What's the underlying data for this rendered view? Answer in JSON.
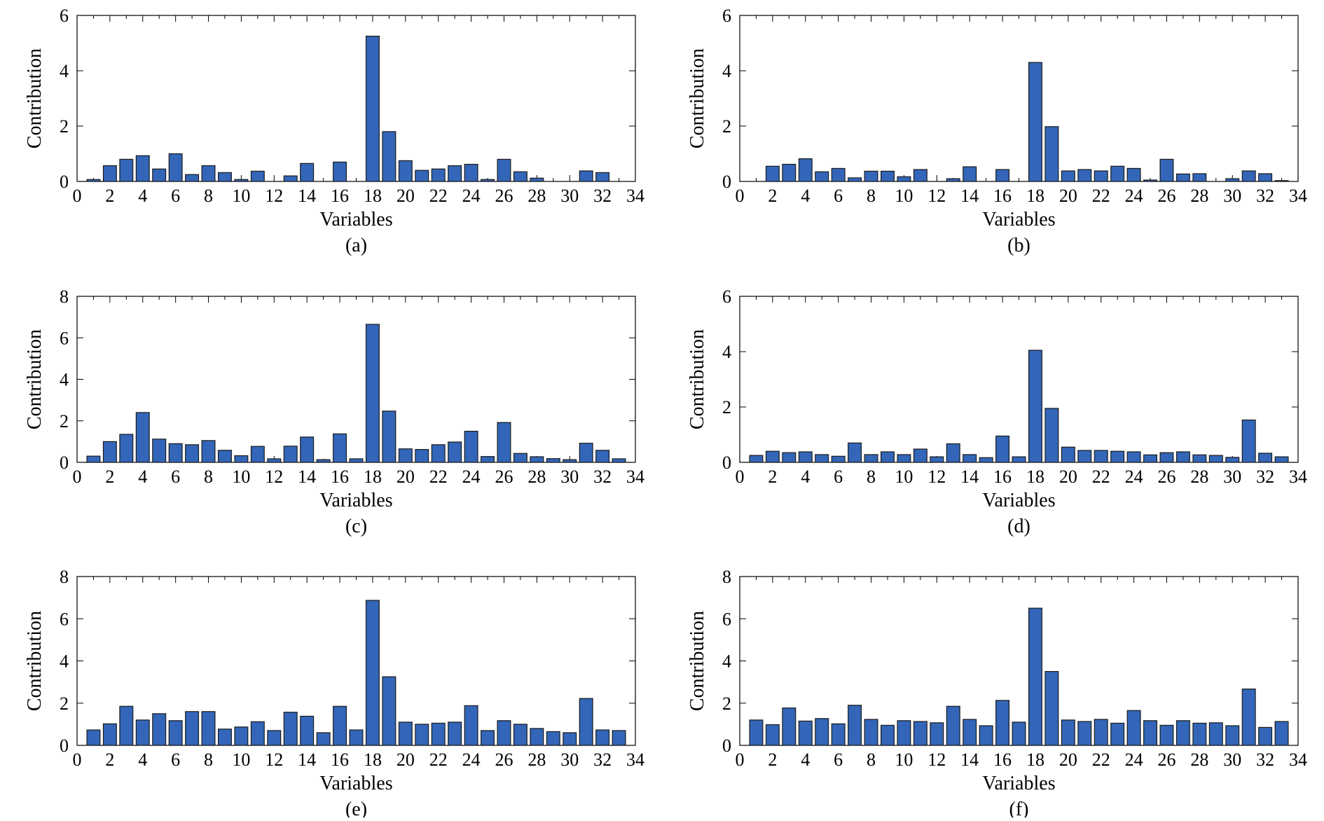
{
  "colors": {
    "bar_fill": "#3366b8",
    "bar_stroke": "#1a1a1a",
    "axis": "#000000",
    "background": "#ffffff"
  },
  "chart_data": [
    {
      "type": "bar",
      "panel_label": "(a)",
      "xlabel": "Variables",
      "ylabel": "Contribution",
      "xlim": [
        0,
        34
      ],
      "ylim": [
        0,
        6
      ],
      "xticks": [
        0,
        2,
        4,
        6,
        8,
        10,
        12,
        14,
        16,
        18,
        20,
        22,
        24,
        26,
        28,
        30,
        32,
        34
      ],
      "yticks": [
        0,
        2,
        4,
        6
      ],
      "categories": [
        1,
        2,
        3,
        4,
        5,
        6,
        7,
        8,
        9,
        10,
        11,
        12,
        13,
        14,
        15,
        16,
        17,
        18,
        19,
        20,
        21,
        22,
        23,
        24,
        25,
        26,
        27,
        28,
        29,
        30,
        31,
        32,
        33
      ],
      "values": [
        0.07,
        0.57,
        0.8,
        0.93,
        0.45,
        1.0,
        0.25,
        0.57,
        0.32,
        0.07,
        0.37,
        0,
        0.2,
        0.65,
        0,
        0.7,
        0,
        5.25,
        1.8,
        0.75,
        0.4,
        0.45,
        0.57,
        0.62,
        0.07,
        0.8,
        0.35,
        0.12,
        0,
        0,
        0.38,
        0.32,
        0
      ]
    },
    {
      "type": "bar",
      "panel_label": "(b)",
      "xlabel": "Variables",
      "ylabel": "Contribution",
      "xlim": [
        0,
        34
      ],
      "ylim": [
        0,
        6
      ],
      "xticks": [
        0,
        2,
        4,
        6,
        8,
        10,
        12,
        14,
        16,
        18,
        20,
        22,
        24,
        26,
        28,
        30,
        32,
        34
      ],
      "yticks": [
        0,
        2,
        4,
        6
      ],
      "categories": [
        1,
        2,
        3,
        4,
        5,
        6,
        7,
        8,
        9,
        10,
        11,
        12,
        13,
        14,
        15,
        16,
        17,
        18,
        19,
        20,
        21,
        22,
        23,
        24,
        25,
        26,
        27,
        28,
        29,
        30,
        31,
        32,
        33
      ],
      "values": [
        0,
        0.55,
        0.62,
        0.82,
        0.35,
        0.47,
        0.13,
        0.37,
        0.37,
        0.17,
        0.43,
        0,
        0.1,
        0.53,
        0,
        0.43,
        0,
        4.3,
        1.98,
        0.38,
        0.43,
        0.38,
        0.55,
        0.47,
        0.05,
        0.8,
        0.27,
        0.28,
        0,
        0.1,
        0.38,
        0.28,
        0.03
      ]
    },
    {
      "type": "bar",
      "panel_label": "(c)",
      "xlabel": "Variables",
      "ylabel": "Contribution",
      "xlim": [
        0,
        34
      ],
      "ylim": [
        0,
        8
      ],
      "xticks": [
        0,
        2,
        4,
        6,
        8,
        10,
        12,
        14,
        16,
        18,
        20,
        22,
        24,
        26,
        28,
        30,
        32,
        34
      ],
      "yticks": [
        0,
        2,
        4,
        6,
        8
      ],
      "categories": [
        1,
        2,
        3,
        4,
        5,
        6,
        7,
        8,
        9,
        10,
        11,
        12,
        13,
        14,
        15,
        16,
        17,
        18,
        19,
        20,
        21,
        22,
        23,
        24,
        25,
        26,
        27,
        28,
        29,
        30,
        31,
        32,
        33
      ],
      "values": [
        0.3,
        1.0,
        1.35,
        2.4,
        1.12,
        0.9,
        0.85,
        1.05,
        0.58,
        0.32,
        0.77,
        0.17,
        0.78,
        1.22,
        0.13,
        1.37,
        0.17,
        6.65,
        2.47,
        0.65,
        0.62,
        0.85,
        0.98,
        1.5,
        0.28,
        1.92,
        0.43,
        0.27,
        0.18,
        0.13,
        0.92,
        0.58,
        0.17
      ]
    },
    {
      "type": "bar",
      "panel_label": "(d)",
      "xlabel": "Variables",
      "ylabel": "Contribution",
      "xlim": [
        0,
        34
      ],
      "ylim": [
        0,
        6
      ],
      "xticks": [
        0,
        2,
        4,
        6,
        8,
        10,
        12,
        14,
        16,
        18,
        20,
        22,
        24,
        26,
        28,
        30,
        32,
        34
      ],
      "yticks": [
        0,
        2,
        4,
        6
      ],
      "categories": [
        1,
        2,
        3,
        4,
        5,
        6,
        7,
        8,
        9,
        10,
        11,
        12,
        13,
        14,
        15,
        16,
        17,
        18,
        19,
        20,
        21,
        22,
        23,
        24,
        25,
        26,
        27,
        28,
        29,
        30,
        31,
        32,
        33
      ],
      "values": [
        0.25,
        0.4,
        0.35,
        0.38,
        0.28,
        0.22,
        0.7,
        0.28,
        0.38,
        0.28,
        0.48,
        0.2,
        0.67,
        0.28,
        0.17,
        0.95,
        0.2,
        4.05,
        1.95,
        0.55,
        0.43,
        0.43,
        0.4,
        0.38,
        0.27,
        0.35,
        0.38,
        0.27,
        0.25,
        0.18,
        1.53,
        0.33,
        0.2
      ]
    },
    {
      "type": "bar",
      "panel_label": "(e)",
      "xlabel": "Variables",
      "ylabel": "Contribution",
      "xlim": [
        0,
        34
      ],
      "ylim": [
        0,
        8
      ],
      "xticks": [
        0,
        2,
        4,
        6,
        8,
        10,
        12,
        14,
        16,
        18,
        20,
        22,
        24,
        26,
        28,
        30,
        32,
        34
      ],
      "yticks": [
        0,
        2,
        4,
        6,
        8
      ],
      "categories": [
        1,
        2,
        3,
        4,
        5,
        6,
        7,
        8,
        9,
        10,
        11,
        12,
        13,
        14,
        15,
        16,
        17,
        18,
        19,
        20,
        21,
        22,
        23,
        24,
        25,
        26,
        27,
        28,
        29,
        30,
        31,
        32,
        33
      ],
      "values": [
        0.73,
        1.02,
        1.85,
        1.2,
        1.5,
        1.17,
        1.6,
        1.6,
        0.77,
        0.87,
        1.12,
        0.7,
        1.57,
        1.38,
        0.6,
        1.85,
        0.73,
        6.87,
        3.25,
        1.1,
        1.0,
        1.05,
        1.1,
        1.88,
        0.7,
        1.17,
        1.0,
        0.8,
        0.65,
        0.6,
        2.22,
        0.73,
        0.7
      ]
    },
    {
      "type": "bar",
      "panel_label": "(f)",
      "xlabel": "Variables",
      "ylabel": "Contribution",
      "xlim": [
        0,
        34
      ],
      "ylim": [
        0,
        8
      ],
      "xticks": [
        0,
        2,
        4,
        6,
        8,
        10,
        12,
        14,
        16,
        18,
        20,
        22,
        24,
        26,
        28,
        30,
        32,
        34
      ],
      "yticks": [
        0,
        2,
        4,
        6,
        8
      ],
      "categories": [
        1,
        2,
        3,
        4,
        5,
        6,
        7,
        8,
        9,
        10,
        11,
        12,
        13,
        14,
        15,
        16,
        17,
        18,
        19,
        20,
        21,
        22,
        23,
        24,
        25,
        26,
        27,
        28,
        29,
        30,
        31,
        32,
        33
      ],
      "values": [
        1.2,
        0.98,
        1.77,
        1.15,
        1.27,
        1.02,
        1.9,
        1.23,
        0.95,
        1.17,
        1.13,
        1.07,
        1.85,
        1.23,
        0.93,
        2.13,
        1.1,
        6.5,
        3.5,
        1.2,
        1.13,
        1.23,
        1.05,
        1.65,
        1.17,
        0.95,
        1.17,
        1.05,
        1.07,
        0.93,
        2.67,
        0.85,
        1.13
      ]
    }
  ]
}
